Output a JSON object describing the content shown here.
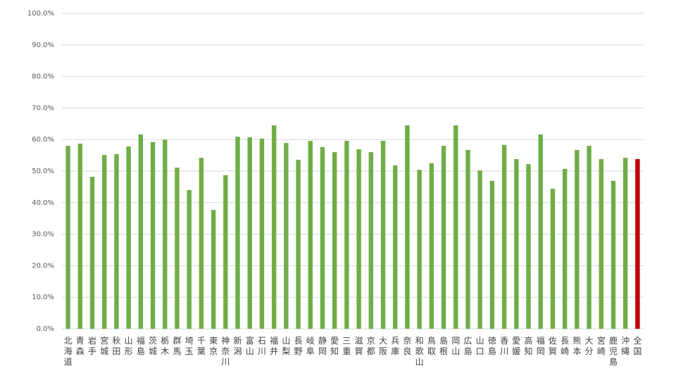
{
  "chart_data": {
    "type": "bar",
    "categories": [
      "北海道",
      "青森",
      "岩手",
      "宮城",
      "秋田",
      "山形",
      "福島",
      "茨城",
      "栃木",
      "群馬",
      "埼玉",
      "千葉",
      "東京",
      "神奈川",
      "新潟",
      "富山",
      "石川",
      "福井",
      "山梨",
      "長野",
      "岐阜",
      "静岡",
      "愛知",
      "三重",
      "滋賀",
      "京都",
      "大阪",
      "兵庫",
      "奈良",
      "和歌山",
      "鳥取",
      "島根",
      "岡山",
      "広島",
      "山口",
      "徳島",
      "香川",
      "愛媛",
      "高知",
      "福岡",
      "佐賀",
      "長崎",
      "熊本",
      "大分",
      "宮崎",
      "鹿児島",
      "沖縄",
      "全国"
    ],
    "values": [
      58.0,
      58.7,
      48.2,
      55.1,
      55.4,
      57.8,
      61.6,
      59.2,
      60.0,
      51.1,
      44.0,
      54.2,
      37.7,
      48.7,
      60.9,
      60.7,
      60.3,
      64.5,
      58.9,
      53.6,
      59.6,
      57.6,
      56.0,
      59.6,
      56.9,
      56.0,
      59.6,
      51.8,
      64.5,
      50.4,
      52.5,
      58.0,
      64.5,
      56.7,
      50.2,
      46.9,
      58.3,
      53.8,
      52.2,
      61.6,
      44.4,
      50.7,
      56.7,
      58.0,
      53.8,
      46.9,
      54.2,
      53.8
    ],
    "colors": [
      "#70ad47",
      "#70ad47",
      "#70ad47",
      "#70ad47",
      "#70ad47",
      "#70ad47",
      "#70ad47",
      "#70ad47",
      "#70ad47",
      "#70ad47",
      "#70ad47",
      "#70ad47",
      "#70ad47",
      "#70ad47",
      "#70ad47",
      "#70ad47",
      "#70ad47",
      "#70ad47",
      "#70ad47",
      "#70ad47",
      "#70ad47",
      "#70ad47",
      "#70ad47",
      "#70ad47",
      "#70ad47",
      "#70ad47",
      "#70ad47",
      "#70ad47",
      "#70ad47",
      "#70ad47",
      "#70ad47",
      "#70ad47",
      "#70ad47",
      "#70ad47",
      "#70ad47",
      "#70ad47",
      "#70ad47",
      "#70ad47",
      "#70ad47",
      "#70ad47",
      "#70ad47",
      "#70ad47",
      "#70ad47",
      "#70ad47",
      "#70ad47",
      "#70ad47",
      "#70ad47",
      "#c00000"
    ],
    "ylim": [
      0,
      100
    ],
    "yticks": [
      {
        "value": 0,
        "label": "0.0%"
      },
      {
        "value": 10,
        "label": "10.0%"
      },
      {
        "value": 20,
        "label": "20.0%"
      },
      {
        "value": 30,
        "label": "30.0%"
      },
      {
        "value": 40,
        "label": "40.0%"
      },
      {
        "value": 50,
        "label": "50.0%"
      },
      {
        "value": 60,
        "label": "60.0%"
      },
      {
        "value": 70,
        "label": "70.0%"
      },
      {
        "value": 80,
        "label": "80.0%"
      },
      {
        "value": 90,
        "label": "90.0%"
      },
      {
        "value": 100,
        "label": "100.0%"
      }
    ],
    "grid": true
  }
}
